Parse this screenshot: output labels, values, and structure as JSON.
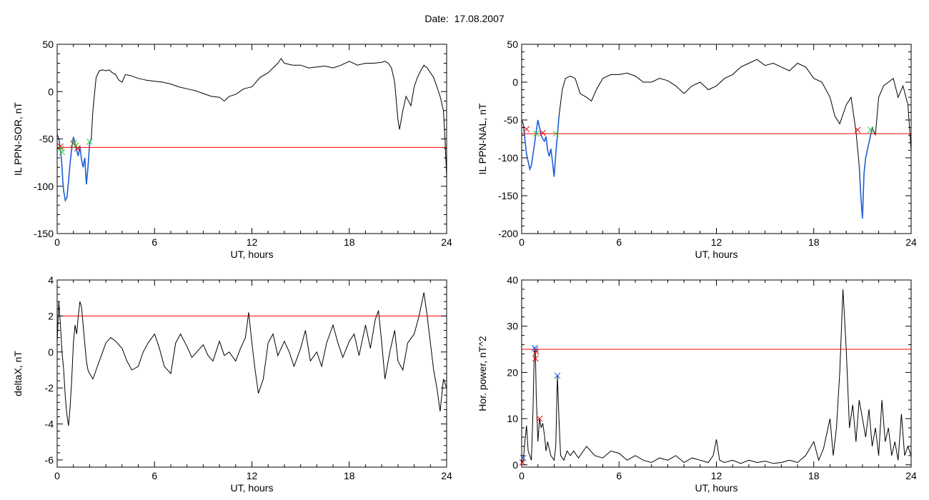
{
  "page": {
    "date_label": "Date:",
    "date_value": "17.08.2007"
  },
  "colors": {
    "axis": "#000000",
    "series": "#000000",
    "threshold": "#ff0000",
    "highlight": "#1f5fd6",
    "marker_red": "#ff0000",
    "marker_green": "#33cc33",
    "marker_blue": "#1f5fd6"
  },
  "chart_data": [
    {
      "id": "ppn-sor",
      "type": "line",
      "title": "",
      "xlabel": "UT, hours",
      "ylabel": "IL PPN-SOR, nT",
      "xlim": [
        0,
        24
      ],
      "ylim": [
        -150,
        50
      ],
      "xticks": [
        0,
        6,
        12,
        18,
        24
      ],
      "yticks": [
        -150,
        -100,
        -50,
        0,
        50
      ],
      "ytick_labels": [
        "-150",
        "-100",
        "-50",
        "0",
        "50"
      ],
      "threshold": -59,
      "series": [
        {
          "x": [
            0,
            0.1,
            0.2,
            0.25,
            0.3,
            0.35,
            0.4,
            0.5,
            0.6,
            0.7,
            0.8,
            0.9,
            1.0,
            1.1,
            1.2,
            1.3,
            1.4,
            1.5,
            1.6,
            1.7,
            1.8,
            1.9,
            2.0,
            2.1,
            2.2,
            2.4,
            2.6,
            2.8,
            3.0,
            3.2,
            3.4,
            3.6,
            3.8,
            4.0,
            4.2,
            4.5,
            5.0,
            5.5,
            6.0,
            6.5,
            7.0,
            7.5,
            8.0,
            8.5,
            9.0,
            9.5,
            10.0,
            10.3,
            10.6,
            11.0,
            11.5,
            12.0,
            12.5,
            13.0,
            13.3,
            13.6,
            13.8,
            14.0,
            14.5,
            15.0,
            15.5,
            16.0,
            16.5,
            17.0,
            17.5,
            18.0,
            18.5,
            19.0,
            19.5,
            20.0,
            20.2,
            20.4,
            20.6,
            20.8,
            20.9,
            21.0,
            21.1,
            21.3,
            21.5,
            21.8,
            22.0,
            22.2,
            22.4,
            22.6,
            22.8,
            23.0,
            23.2,
            23.4,
            23.6,
            23.8,
            23.9,
            24.0
          ],
          "y": [
            -45,
            -50,
            -60,
            -70,
            -80,
            -95,
            -105,
            -115,
            -112,
            -95,
            -75,
            -60,
            -48,
            -55,
            -62,
            -68,
            -58,
            -72,
            -80,
            -70,
            -98,
            -80,
            -55,
            -50,
            -20,
            15,
            22,
            23,
            22,
            23,
            20,
            18,
            12,
            10,
            18,
            17,
            14,
            12,
            11,
            10,
            8,
            5,
            3,
            1,
            -2,
            -5,
            -6,
            -10,
            -5,
            -3,
            3,
            5,
            15,
            20,
            25,
            30,
            35,
            30,
            28,
            28,
            25,
            26,
            27,
            25,
            28,
            32,
            28,
            30,
            30,
            31,
            32,
            30,
            25,
            10,
            -10,
            -30,
            -40,
            -20,
            -5,
            -15,
            5,
            15,
            22,
            28,
            25,
            20,
            15,
            5,
            -5,
            -20,
            -50,
            -90
          ]
        }
      ],
      "highlight_ranges": [
        [
          0.1,
          2.1
        ]
      ],
      "markers": [
        {
          "x": 0.2,
          "y": -58,
          "color": "red"
        },
        {
          "x": 0.25,
          "y": -60,
          "color": "green"
        },
        {
          "x": 0.3,
          "y": -64,
          "color": "green"
        },
        {
          "x": 1.0,
          "y": -55,
          "color": "red"
        },
        {
          "x": 1.05,
          "y": -54,
          "color": "green"
        },
        {
          "x": 1.15,
          "y": -57,
          "color": "green"
        },
        {
          "x": 1.25,
          "y": -60,
          "color": "red"
        },
        {
          "x": 2.0,
          "y": -53,
          "color": "green"
        }
      ]
    },
    {
      "id": "ppn-nal",
      "type": "line",
      "title": "",
      "xlabel": "UT, hours",
      "ylabel": "IL PPN-NAL, nT",
      "xlim": [
        0,
        24
      ],
      "ylim": [
        -200,
        50
      ],
      "xticks": [
        0,
        6,
        12,
        18,
        24
      ],
      "yticks": [
        -200,
        -150,
        -100,
        -50,
        0,
        50
      ],
      "ytick_labels": [
        "-200",
        "-150",
        "-100",
        "-50",
        "0",
        "50"
      ],
      "threshold": -68,
      "series": [
        {
          "x": [
            0,
            0.1,
            0.2,
            0.3,
            0.4,
            0.5,
            0.6,
            0.7,
            0.8,
            0.9,
            1.0,
            1.1,
            1.2,
            1.3,
            1.4,
            1.5,
            1.6,
            1.7,
            1.8,
            1.9,
            2.0,
            2.1,
            2.2,
            2.3,
            2.5,
            2.7,
            3.0,
            3.3,
            3.6,
            4.0,
            4.3,
            4.6,
            5.0,
            5.5,
            6.0,
            6.5,
            7.0,
            7.5,
            8.0,
            8.5,
            9.0,
            9.5,
            10.0,
            10.5,
            11.0,
            11.5,
            12.0,
            12.5,
            13.0,
            13.5,
            14.0,
            14.5,
            15.0,
            15.5,
            16.0,
            16.5,
            17.0,
            17.5,
            18.0,
            18.5,
            19.0,
            19.3,
            19.6,
            20.0,
            20.3,
            20.6,
            20.8,
            20.9,
            21.0,
            21.1,
            21.2,
            21.4,
            21.6,
            21.8,
            22.0,
            22.3,
            22.6,
            22.9,
            23.2,
            23.5,
            23.8,
            24.0
          ],
          "y": [
            -50,
            -55,
            -75,
            -95,
            -105,
            -115,
            -110,
            -95,
            -80,
            -65,
            -50,
            -60,
            -70,
            -75,
            -78,
            -72,
            -90,
            -98,
            -88,
            -105,
            -125,
            -95,
            -70,
            -45,
            -10,
            5,
            8,
            5,
            -15,
            -20,
            -25,
            -10,
            5,
            10,
            10,
            12,
            8,
            0,
            0,
            5,
            2,
            -5,
            -15,
            -5,
            0,
            -10,
            -5,
            5,
            10,
            20,
            25,
            30,
            22,
            25,
            20,
            15,
            25,
            20,
            5,
            0,
            -20,
            -45,
            -55,
            -30,
            -20,
            -65,
            -110,
            -150,
            -180,
            -120,
            -100,
            -80,
            -60,
            -70,
            -20,
            -5,
            0,
            5,
            -20,
            -5,
            -30,
            -90
          ]
        }
      ],
      "highlight_ranges": [
        [
          0.1,
          2.3
        ],
        [
          20.7,
          21.6
        ]
      ],
      "markers": [
        {
          "x": 0.3,
          "y": -62,
          "color": "red"
        },
        {
          "x": 0.9,
          "y": -68,
          "color": "green"
        },
        {
          "x": 1.3,
          "y": -67,
          "color": "red"
        },
        {
          "x": 2.1,
          "y": -68,
          "color": "green"
        },
        {
          "x": 20.7,
          "y": -63,
          "color": "red"
        },
        {
          "x": 21.5,
          "y": -63,
          "color": "green"
        }
      ]
    },
    {
      "id": "deltax",
      "type": "line",
      "title": "",
      "xlabel": "UT, hours",
      "ylabel": "deltaX, nT",
      "xlim": [
        0,
        24
      ],
      "ylim": [
        -6.4,
        4
      ],
      "xticks": [
        0,
        6,
        12,
        18,
        24
      ],
      "yticks": [
        -6,
        -4,
        -2,
        0,
        2,
        4
      ],
      "ytick_labels": [
        "-6",
        "-4",
        "-2",
        "0",
        "2",
        "4"
      ],
      "threshold": 2,
      "series": [
        {
          "x": [
            0,
            0.1,
            0.2,
            0.3,
            0.4,
            0.5,
            0.6,
            0.7,
            0.8,
            0.9,
            1.0,
            1.1,
            1.2,
            1.3,
            1.4,
            1.5,
            1.6,
            1.7,
            1.8,
            1.9,
            2.0,
            2.2,
            2.4,
            2.6,
            2.8,
            3.0,
            3.3,
            3.6,
            4.0,
            4.3,
            4.6,
            5.0,
            5.3,
            5.6,
            6.0,
            6.3,
            6.6,
            7.0,
            7.3,
            7.6,
            8.0,
            8.3,
            8.6,
            9.0,
            9.3,
            9.6,
            10.0,
            10.3,
            10.6,
            11.0,
            11.3,
            11.6,
            11.8,
            12.0,
            12.2,
            12.4,
            12.7,
            13.0,
            13.3,
            13.6,
            14.0,
            14.3,
            14.6,
            15.0,
            15.3,
            15.6,
            16.0,
            16.3,
            16.6,
            17.0,
            17.3,
            17.6,
            18.0,
            18.3,
            18.6,
            19.0,
            19.3,
            19.6,
            19.8,
            20.0,
            20.2,
            20.5,
            20.8,
            21.0,
            21.3,
            21.6,
            22.0,
            22.3,
            22.6,
            22.8,
            23.0,
            23.2,
            23.4,
            23.6,
            23.8,
            24.0
          ],
          "y": [
            0.5,
            2.8,
            1.5,
            0.0,
            -1.0,
            -2.5,
            -3.5,
            -4.1,
            -3.0,
            -1.5,
            0.5,
            1.5,
            1.0,
            2.0,
            2.8,
            2.5,
            1.5,
            0.5,
            -0.5,
            -1.0,
            -1.2,
            -1.5,
            -1.0,
            -0.5,
            0.0,
            0.5,
            0.8,
            0.6,
            0.2,
            -0.5,
            -1.0,
            -0.8,
            0.0,
            0.5,
            1.0,
            0.2,
            -0.8,
            -1.2,
            0.5,
            1.0,
            0.3,
            -0.3,
            0.0,
            0.4,
            -0.2,
            -0.5,
            0.6,
            -0.2,
            0.0,
            -0.5,
            0.2,
            0.8,
            2.2,
            0.5,
            -1.0,
            -2.3,
            -1.5,
            0.5,
            1.0,
            -0.2,
            0.6,
            0.0,
            -0.8,
            0.2,
            1.2,
            -0.5,
            0.0,
            -0.8,
            0.5,
            1.5,
            0.5,
            -0.3,
            0.6,
            1.0,
            -0.2,
            1.5,
            0.2,
            1.8,
            2.3,
            0.5,
            -1.5,
            0.0,
            1.2,
            -0.5,
            -1.0,
            0.5,
            1.0,
            2.0,
            3.3,
            2.0,
            0.5,
            -1.0,
            -2.0,
            -3.3,
            -1.5,
            -2.0
          ]
        }
      ],
      "highlight_ranges": [],
      "markers": []
    },
    {
      "id": "hor-power",
      "type": "line",
      "title": "",
      "xlabel": "UT, hours",
      "ylabel": "Hor. power, nT^2",
      "xlim": [
        0,
        24
      ],
      "ylim": [
        -0.5,
        40
      ],
      "xticks": [
        0,
        6,
        12,
        18,
        24
      ],
      "yticks": [
        0,
        10,
        20,
        30,
        40
      ],
      "ytick_labels": [
        "0",
        "10",
        "20",
        "30",
        "40"
      ],
      "threshold": 25,
      "series": [
        {
          "x": [
            0,
            0.1,
            0.2,
            0.3,
            0.4,
            0.5,
            0.6,
            0.7,
            0.75,
            0.8,
            0.85,
            0.9,
            1.0,
            1.1,
            1.2,
            1.3,
            1.4,
            1.5,
            1.6,
            1.8,
            2.0,
            2.1,
            2.2,
            2.3,
            2.4,
            2.6,
            2.8,
            3.0,
            3.2,
            3.5,
            4.0,
            4.5,
            5.0,
            5.5,
            6.0,
            6.5,
            7.0,
            7.5,
            8.0,
            8.5,
            9.0,
            9.5,
            10.0,
            10.5,
            11.0,
            11.5,
            11.8,
            12.0,
            12.2,
            12.5,
            13.0,
            13.5,
            14.0,
            14.5,
            15.0,
            15.5,
            16.0,
            16.5,
            17.0,
            17.5,
            18.0,
            18.3,
            18.6,
            19.0,
            19.2,
            19.4,
            19.6,
            19.8,
            20.0,
            20.2,
            20.4,
            20.6,
            20.8,
            21.0,
            21.2,
            21.4,
            21.6,
            21.8,
            22.0,
            22.2,
            22.4,
            22.6,
            22.8,
            23.0,
            23.2,
            23.4,
            23.6,
            23.8,
            24.0
          ],
          "y": [
            0.5,
            1.0,
            5.0,
            8.5,
            3.0,
            2.0,
            1.0,
            12.0,
            20.0,
            25.3,
            24.0,
            15.0,
            5.0,
            10.0,
            8.0,
            9.0,
            6.5,
            3.0,
            5.0,
            2.0,
            1.0,
            4.0,
            19.3,
            10.0,
            2.0,
            1.0,
            3.0,
            2.0,
            3.0,
            1.5,
            4.0,
            2.0,
            1.5,
            3.0,
            2.5,
            1.0,
            2.0,
            1.0,
            0.5,
            1.5,
            1.0,
            2.0,
            0.5,
            1.5,
            1.0,
            0.5,
            2.0,
            5.5,
            1.0,
            0.5,
            1.0,
            0.3,
            1.0,
            0.5,
            0.8,
            0.3,
            0.5,
            1.0,
            0.5,
            2.0,
            5.0,
            1.0,
            3.5,
            10.0,
            2.0,
            8.0,
            20.0,
            38.0,
            25.0,
            8.0,
            13.0,
            5.0,
            14.0,
            10.0,
            6.0,
            12.0,
            4.0,
            8.0,
            2.0,
            14.0,
            5.0,
            8.0,
            2.0,
            5.0,
            1.0,
            11.0,
            2.0,
            4.0,
            2.0
          ]
        }
      ],
      "highlight_ranges": [],
      "markers": [
        {
          "x": 0.05,
          "y": 0.5,
          "color": "red"
        },
        {
          "x": 0.1,
          "y": 1.5,
          "color": "blue"
        },
        {
          "x": 0.8,
          "y": 25.3,
          "color": "blue"
        },
        {
          "x": 0.85,
          "y": 25.0,
          "color": "blue"
        },
        {
          "x": 0.9,
          "y": 24.5,
          "color": "red"
        },
        {
          "x": 0.85,
          "y": 23.0,
          "color": "red"
        },
        {
          "x": 1.1,
          "y": 10.0,
          "color": "red"
        },
        {
          "x": 2.2,
          "y": 19.3,
          "color": "blue"
        }
      ]
    }
  ]
}
